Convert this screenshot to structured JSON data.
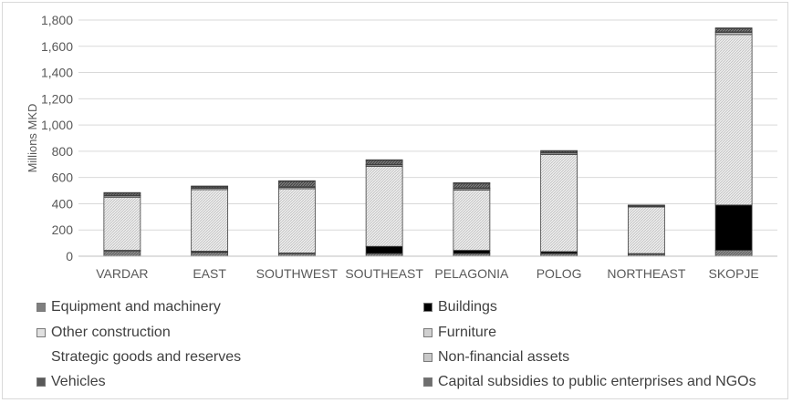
{
  "chart_data": {
    "type": "bar",
    "stacked": true,
    "ylabel": "Millions MKD",
    "xlabel": "",
    "ylim": [
      0,
      1800
    ],
    "yticks": [
      0,
      200,
      400,
      600,
      800,
      1000,
      1200,
      1400,
      1600,
      1800
    ],
    "ytick_labels": [
      "0",
      "200",
      "400",
      "600",
      "800",
      "1,000",
      "1,200",
      "1,400",
      "1,600",
      "1,800"
    ],
    "grid": true,
    "legend_position": "bottom",
    "categories": [
      "VARDAR",
      "EAST",
      "SOUTHWEST",
      "SOUTHEAST",
      "PELAGONIA",
      "POLOG",
      "NORTHEAST",
      "SKOPJE"
    ],
    "series": [
      {
        "name": "Equipment and machinery",
        "color": "#7f7f7f",
        "pattern": "hatch-dark",
        "values": [
          40,
          30,
          20,
          20,
          20,
          20,
          15,
          45
        ]
      },
      {
        "name": "Buildings",
        "color": "#000000",
        "pattern": "solid",
        "values": [
          5,
          8,
          5,
          55,
          25,
          15,
          5,
          345
        ]
      },
      {
        "name": "Other construction",
        "color": "#e0e0e0",
        "pattern": "hatch-light",
        "values": [
          405,
          470,
          490,
          610,
          460,
          740,
          355,
          1300
        ]
      },
      {
        "name": "Furniture",
        "color": "#d0d0d0",
        "pattern": "solid",
        "values": [
          10,
          10,
          10,
          10,
          10,
          10,
          5,
          15
        ]
      },
      {
        "name": "Strategic goods and reserves",
        "color": "#ffffff",
        "pattern": "none",
        "values": [
          0,
          0,
          0,
          0,
          0,
          0,
          0,
          0
        ]
      },
      {
        "name": "Non-financial assets",
        "color": "#c8c8c8",
        "pattern": "solid",
        "values": [
          5,
          5,
          5,
          5,
          5,
          5,
          3,
          5
        ]
      },
      {
        "name": "Vehicles",
        "color": "#595959",
        "pattern": "hatch-mid",
        "values": [
          15,
          8,
          40,
          30,
          35,
          10,
          5,
          25
        ]
      },
      {
        "name": "Capital subsidies to public enterprises and NGOs",
        "color": "#6e6e6e",
        "pattern": "solid",
        "values": [
          5,
          4,
          5,
          5,
          5,
          5,
          2,
          5
        ]
      }
    ]
  }
}
